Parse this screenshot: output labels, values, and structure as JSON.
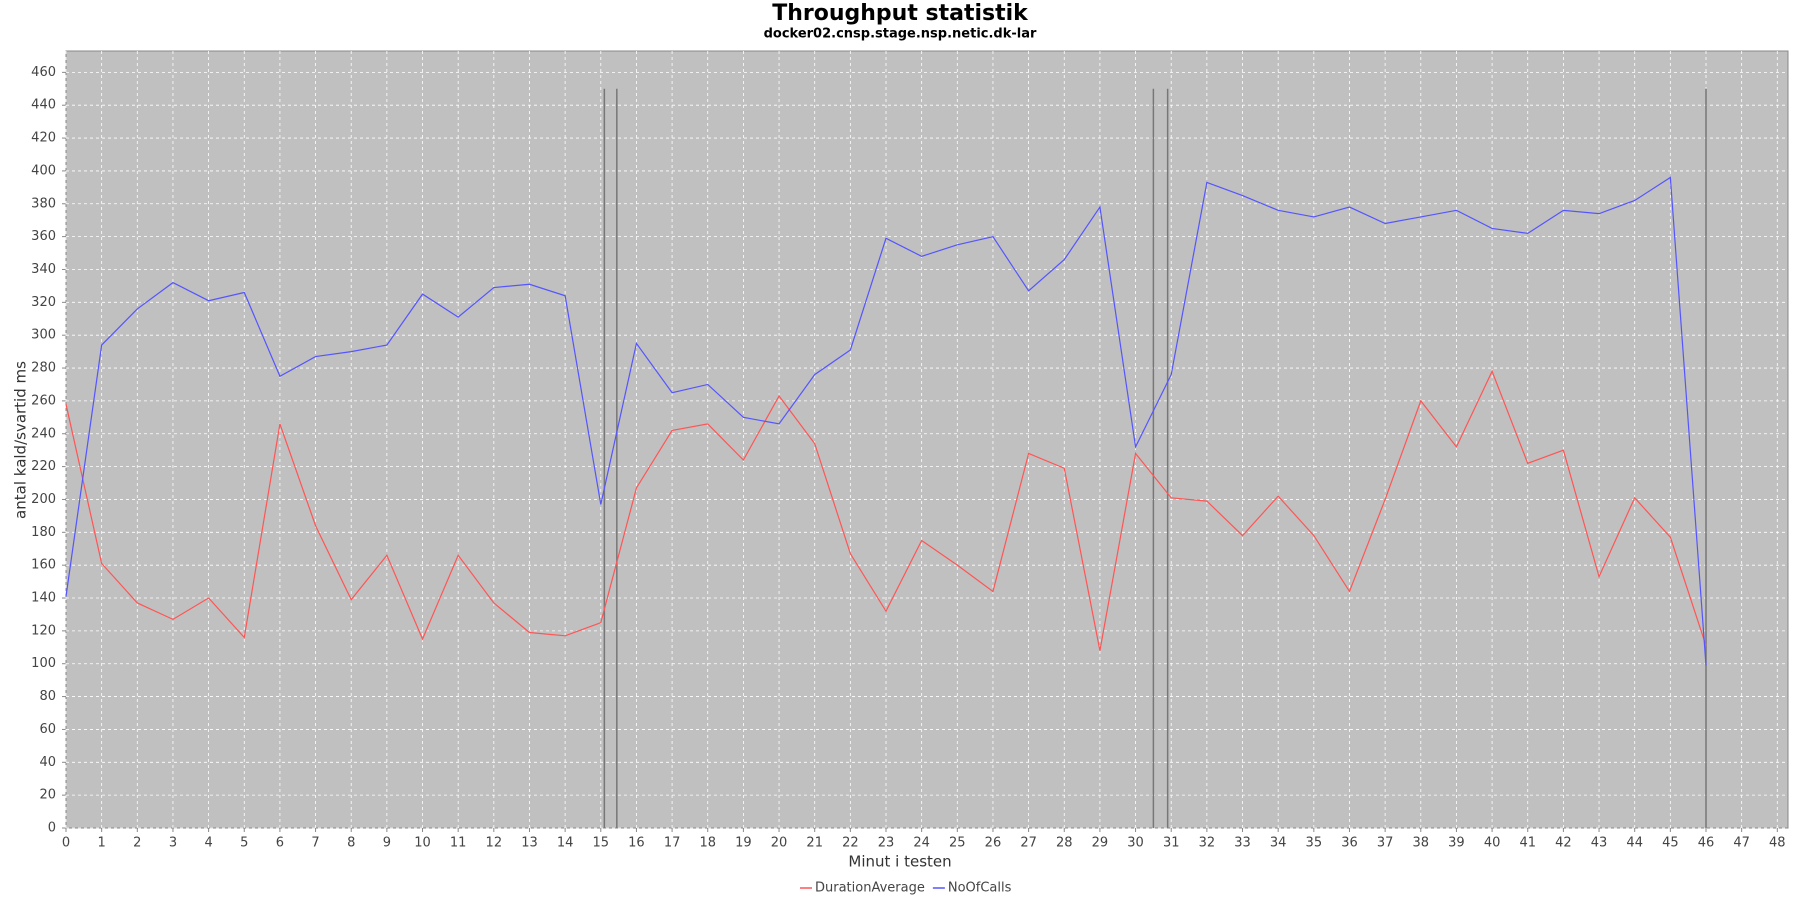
{
  "chart_data": {
    "type": "line",
    "title": "Throughput statistik",
    "subtitle": "docker02.cnsp.stage.nsp.netic.dk-lar",
    "x_label": "Minut i testen",
    "y_label": "antal kald/svartid ms",
    "x": [
      0,
      1,
      2,
      3,
      4,
      5,
      6,
      7,
      8,
      9,
      10,
      11,
      12,
      13,
      14,
      15,
      16,
      17,
      18,
      19,
      20,
      21,
      22,
      23,
      24,
      25,
      26,
      27,
      28,
      29,
      30,
      31,
      32,
      33,
      34,
      35,
      36,
      37,
      38,
      39,
      40,
      41,
      42,
      43,
      44,
      45,
      46
    ],
    "series": [
      {
        "name": "DurationAverage",
        "color": "#ff5555",
        "values": [
          258,
          161,
          137,
          127,
          140,
          116,
          246,
          184,
          139,
          166,
          115,
          166,
          137,
          119,
          117,
          125,
          207,
          242,
          246,
          224,
          263,
          234,
          167,
          132,
          175,
          160,
          144,
          228,
          219,
          108,
          228,
          201,
          199,
          178,
          202,
          178,
          144,
          200,
          260,
          232,
          278,
          222,
          230,
          153,
          201,
          177,
          111
        ]
      },
      {
        "name": "NoOfCalls",
        "color": "#5555ff",
        "values": [
          141,
          294,
          316,
          332,
          321,
          326,
          275,
          287,
          290,
          294,
          325,
          311,
          329,
          331,
          324,
          197,
          295,
          265,
          270,
          250,
          246,
          276,
          291,
          359,
          348,
          355,
          360,
          327,
          346,
          378,
          232,
          276,
          393,
          385,
          376,
          372,
          378,
          368,
          372,
          376,
          365,
          362,
          376,
          374,
          382,
          396,
          99
        ]
      }
    ],
    "vlines": [
      15.1,
      15.45,
      30.5,
      30.9,
      46
    ],
    "vline_top": 450,
    "xlim": [
      0,
      48.3
    ],
    "ylim": [
      0,
      473
    ],
    "xticks": [
      0,
      1,
      2,
      3,
      4,
      5,
      6,
      7,
      8,
      9,
      10,
      11,
      12,
      13,
      14,
      15,
      16,
      17,
      18,
      19,
      20,
      21,
      22,
      23,
      24,
      25,
      26,
      27,
      28,
      29,
      30,
      31,
      32,
      33,
      34,
      35,
      36,
      37,
      38,
      39,
      40,
      41,
      42,
      43,
      44,
      45,
      46,
      47,
      48
    ],
    "yticks": [
      0,
      20,
      40,
      60,
      80,
      100,
      120,
      140,
      160,
      180,
      200,
      220,
      240,
      260,
      280,
      300,
      320,
      340,
      360,
      380,
      400,
      420,
      440,
      460
    ],
    "grid": true,
    "legend": "bottom"
  }
}
